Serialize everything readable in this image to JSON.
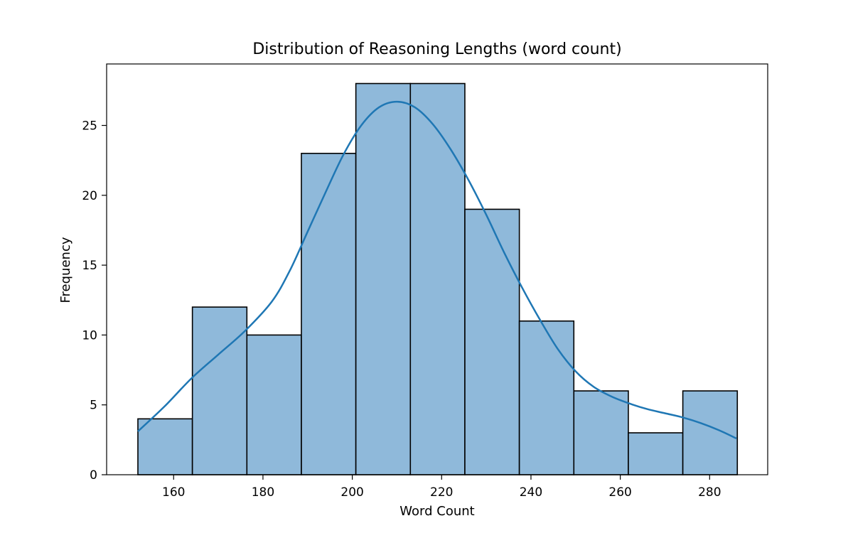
{
  "chart_data": {
    "type": "histogram",
    "title": "Distribution of Reasoning Lengths (word count)",
    "xlabel": "Word Count",
    "ylabel": "Frequency",
    "xlim": [
      145,
      293
    ],
    "ylim": [
      0,
      29.4
    ],
    "xticks": [
      160,
      180,
      200,
      220,
      240,
      260,
      280
    ],
    "yticks": [
      0,
      5,
      10,
      15,
      20,
      25
    ],
    "bins": [
      {
        "start": 152,
        "end": 164.2,
        "count": 4
      },
      {
        "start": 164.2,
        "end": 176.4,
        "count": 12
      },
      {
        "start": 176.4,
        "end": 188.6,
        "count": 10
      },
      {
        "start": 188.6,
        "end": 200.8,
        "count": 23
      },
      {
        "start": 200.8,
        "end": 213.0,
        "count": 28
      },
      {
        "start": 213.0,
        "end": 225.2,
        "count": 28
      },
      {
        "start": 225.2,
        "end": 237.4,
        "count": 19
      },
      {
        "start": 237.4,
        "end": 249.6,
        "count": 11
      },
      {
        "start": 249.6,
        "end": 261.8,
        "count": 6
      },
      {
        "start": 261.8,
        "end": 274.0,
        "count": 3
      },
      {
        "start": 274.0,
        "end": 286.2,
        "count": 6
      }
    ],
    "kde": {
      "x": [
        152,
        158,
        164,
        170,
        176,
        182,
        186,
        190,
        194,
        198,
        202,
        206,
        210,
        214,
        218,
        222,
        226,
        230,
        234,
        238,
        242,
        246,
        250,
        254,
        258,
        262,
        266,
        270,
        274,
        278,
        282,
        286
      ],
      "y": [
        3.1,
        4.9,
        6.9,
        8.6,
        10.3,
        12.4,
        14.6,
        17.4,
        20.2,
        22.9,
        25.0,
        26.3,
        26.7,
        26.3,
        25.1,
        23.3,
        21.1,
        18.6,
        15.9,
        13.4,
        11.1,
        9.0,
        7.4,
        6.3,
        5.6,
        5.1,
        4.7,
        4.4,
        4.1,
        3.7,
        3.2,
        2.6
      ]
    },
    "grid": false,
    "colors": {
      "bar_fill": "#8fb9da",
      "bar_edge": "#000000",
      "kde_line": "#1f77b4"
    }
  }
}
